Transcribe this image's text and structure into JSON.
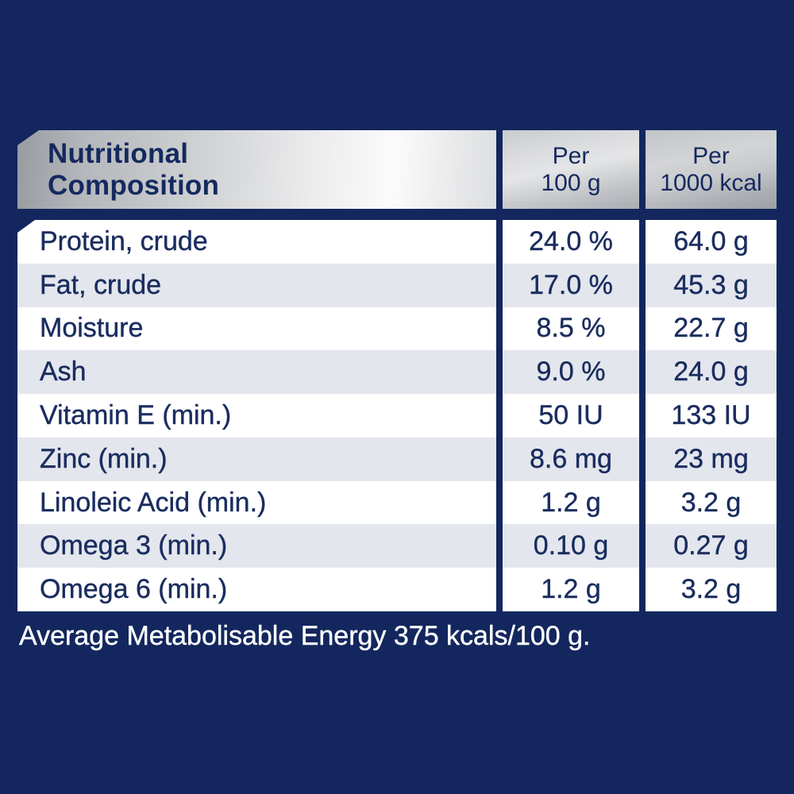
{
  "colors": {
    "background_navy": "#13275e",
    "table_text_navy": "#1a2d5f",
    "row_light": "#ffffff",
    "row_dark": "#e3e6ed",
    "header_silver_light": "#fbfbfc",
    "header_silver_dark": "#989ca1",
    "footer_text": "#ffffff"
  },
  "table": {
    "header": {
      "title_line1": "Nutritional",
      "title_line2": "Composition",
      "col_per_100g_line1": "Per",
      "col_per_100g_line2": "100 g",
      "col_per_1000kcal_line1": "Per",
      "col_per_1000kcal_line2": "1000 kcal"
    },
    "rows": [
      {
        "label": "Protein, crude",
        "per_100g": "24.0 %",
        "per_1000kcal": "64.0 g"
      },
      {
        "label": "Fat, crude",
        "per_100g": "17.0 %",
        "per_1000kcal": "45.3 g"
      },
      {
        "label": "Moisture",
        "per_100g": "8.5 %",
        "per_1000kcal": "22.7 g"
      },
      {
        "label": "Ash",
        "per_100g": "9.0 %",
        "per_1000kcal": "24.0 g"
      },
      {
        "label": "Vitamin E (min.)",
        "per_100g": "50 IU",
        "per_1000kcal": "133 IU"
      },
      {
        "label": "Zinc (min.)",
        "per_100g": "8.6 mg",
        "per_1000kcal": "23 mg"
      },
      {
        "label": "Linoleic Acid (min.)",
        "per_100g": "1.2 g",
        "per_1000kcal": "3.2 g"
      },
      {
        "label": "Omega 3 (min.)",
        "per_100g": "0.10 g",
        "per_1000kcal": "0.27 g"
      },
      {
        "label": "Omega 6 (min.)",
        "per_100g": "1.2 g",
        "per_1000kcal": "3.2 g"
      }
    ]
  },
  "footer": {
    "text": "Average Metabolisable Energy 375 kcals/100 g."
  }
}
